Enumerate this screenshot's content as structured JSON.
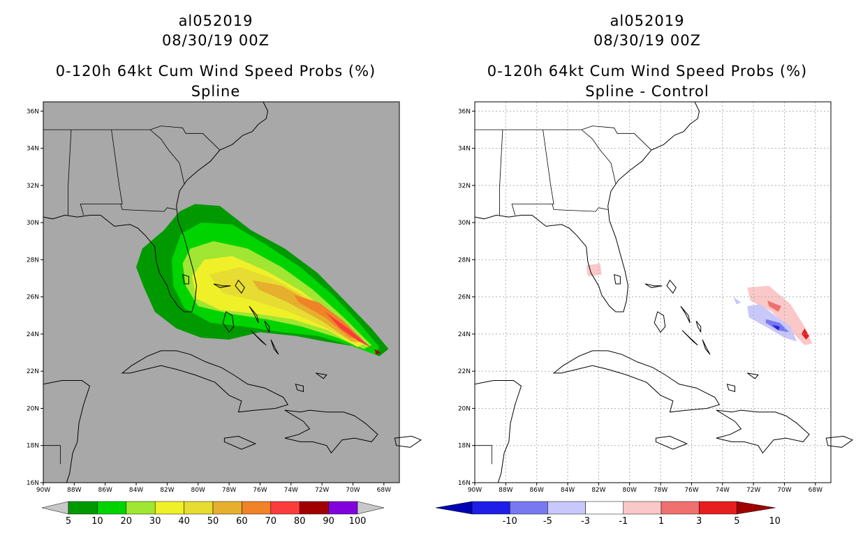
{
  "panels": [
    {
      "storm_id": "al052019",
      "datetime": "08/30/19 00Z",
      "product": "0-120h 64kt Cum Wind Speed Probs (%)",
      "subtitle": "Spline",
      "background": "#a8a8a8",
      "colorbar": {
        "labels": [
          "5",
          "10",
          "20",
          "30",
          "40",
          "50",
          "60",
          "70",
          "80",
          "90",
          "100"
        ],
        "colors": [
          "#009a00",
          "#00d400",
          "#a0e632",
          "#f0f028",
          "#e6dc32",
          "#e6af2d",
          "#f08228",
          "#fa3c3c",
          "#a00000",
          "#8200dc"
        ]
      }
    },
    {
      "storm_id": "al052019",
      "datetime": "08/30/19 00Z",
      "product": "0-120h 64kt Cum Wind Speed Probs (%)",
      "subtitle": "Spline - Control",
      "background": "#ffffff",
      "colorbar": {
        "labels": [
          "-10",
          "-5",
          "-3",
          "-1",
          "1",
          "3",
          "5",
          "10"
        ],
        "colors": [
          "#0000b4",
          "#1e1ee6",
          "#7878f0",
          "#c8c8fa",
          "#ffffff",
          "#fac8c8",
          "#f07070",
          "#e61e1e",
          "#a00000"
        ]
      }
    }
  ],
  "axes": {
    "lon_labels": [
      "90W",
      "88W",
      "86W",
      "84W",
      "82W",
      "80W",
      "78W",
      "76W",
      "74W",
      "72W",
      "70W",
      "68W"
    ],
    "lat_labels": [
      "16N",
      "18N",
      "20N",
      "22N",
      "24N",
      "26N",
      "28N",
      "30N",
      "32N",
      "34N",
      "36N"
    ]
  }
}
